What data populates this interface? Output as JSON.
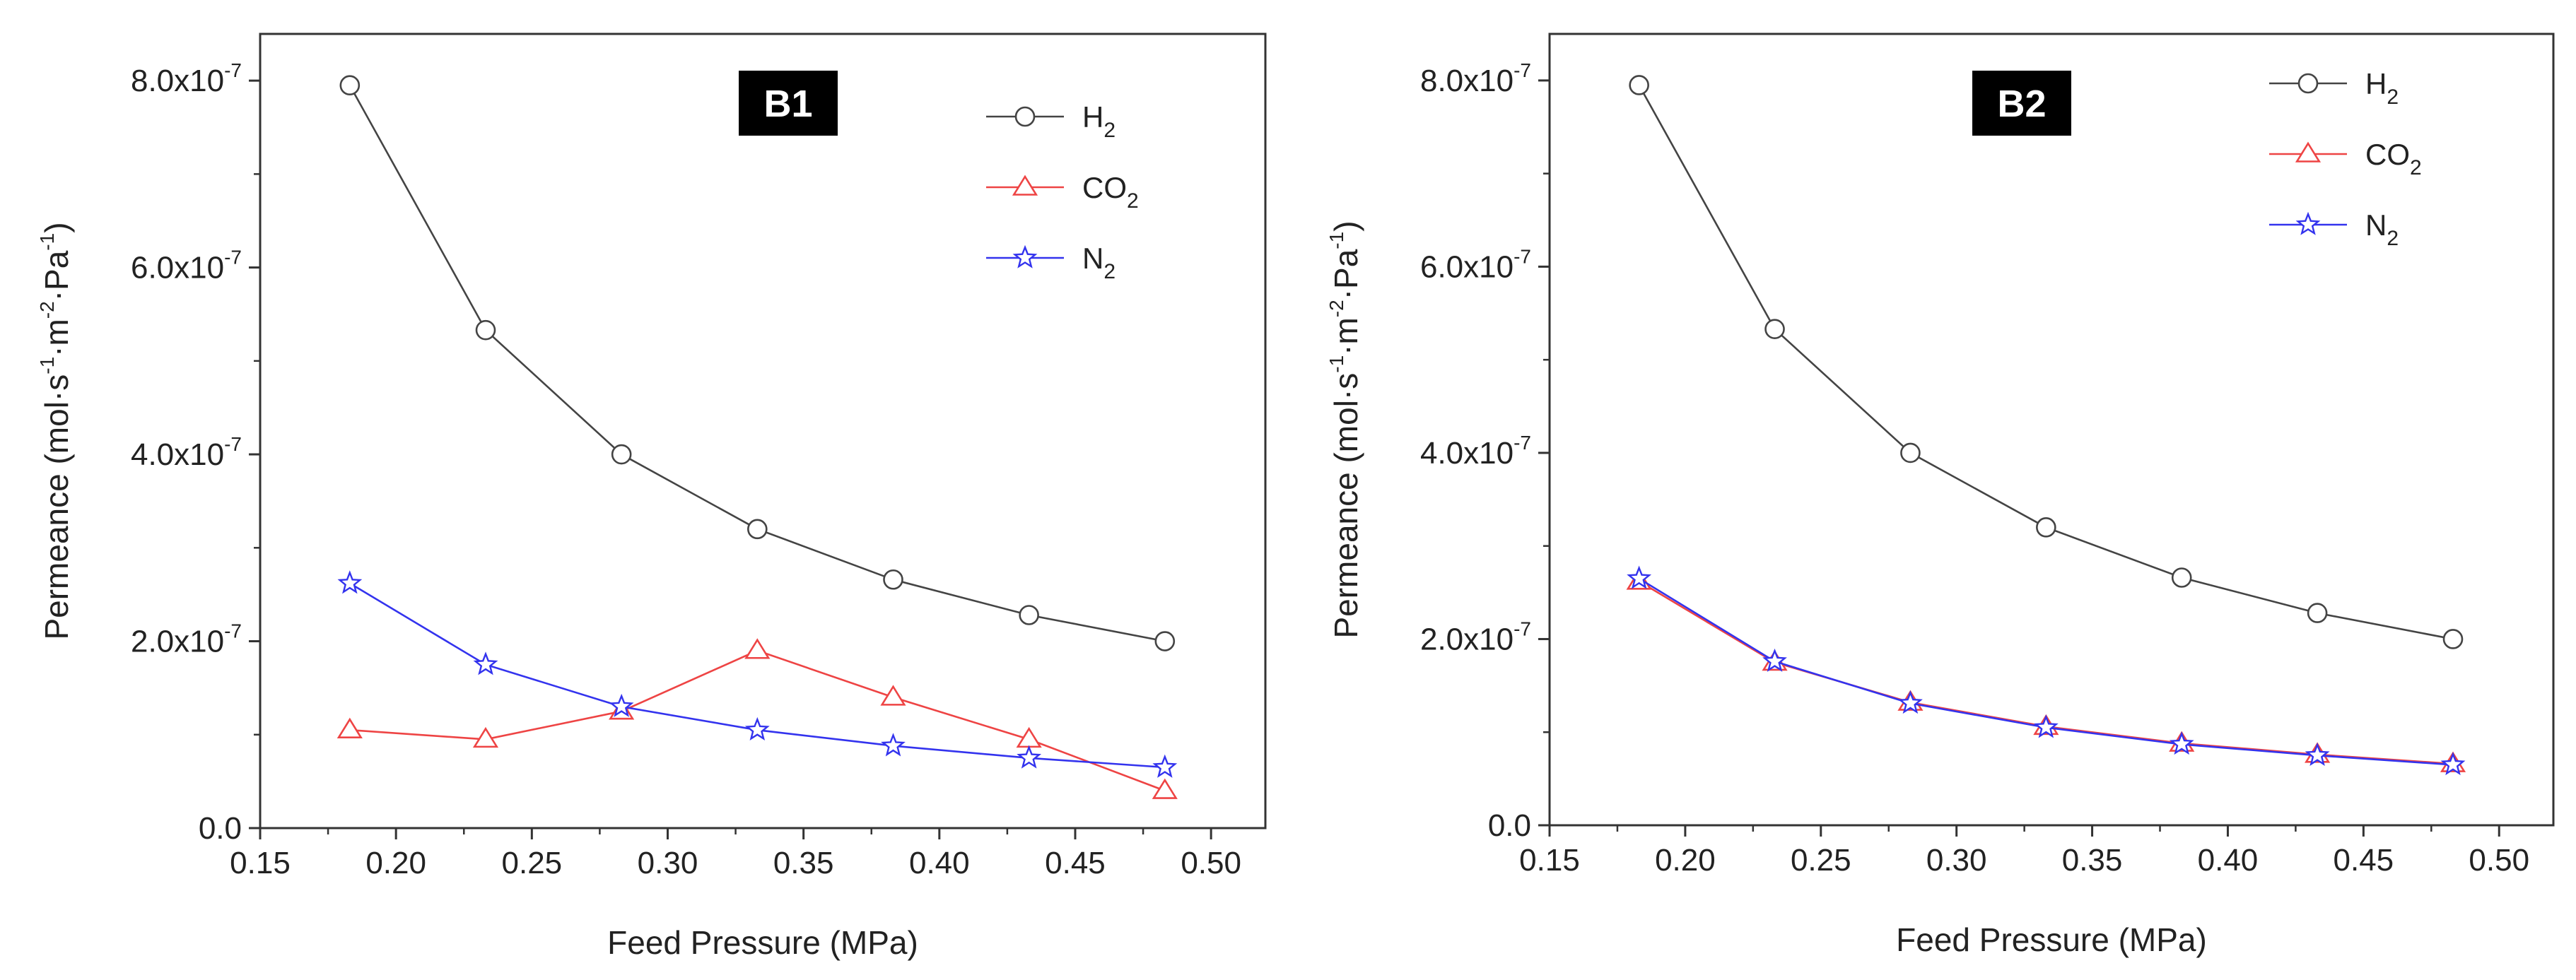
{
  "chart_data": [
    {
      "type": "line",
      "panel_label": "B1",
      "x": [
        0.183,
        0.233,
        0.283,
        0.333,
        0.383,
        0.433,
        0.483
      ],
      "series": [
        {
          "name": "H2",
          "marker": "circle",
          "color": "#444444",
          "values": [
            7.95e-07,
            5.33e-07,
            4e-07,
            3.2e-07,
            2.66e-07,
            2.28e-07,
            2e-07
          ]
        },
        {
          "name": "CO2",
          "marker": "triangle",
          "color": "#ee4444",
          "values": [
            1.05e-07,
            9.5e-08,
            1.25e-07,
            1.9e-07,
            1.4e-07,
            9.5e-08,
            4e-08
          ]
        },
        {
          "name": "N2",
          "marker": "star",
          "color": "#3333ee",
          "values": [
            2.62e-07,
            1.75e-07,
            1.3e-07,
            1.05e-07,
            8.8e-08,
            7.5e-08,
            6.5e-08
          ]
        }
      ],
      "xlabel": "Feed Pressure (MPa)",
      "ylabel": "Permeance (mol·s-1·m-2·Pa-1)",
      "xlim": [
        0.15,
        0.52
      ],
      "ylim": [
        0,
        8.5e-07
      ],
      "xticks": [
        0.15,
        0.2,
        0.25,
        0.3,
        0.35,
        0.4,
        0.45,
        0.5
      ],
      "xtick_labels": [
        "0.15",
        "0.20",
        "0.25",
        "0.30",
        "0.35",
        "0.40",
        "0.45",
        "0.50"
      ],
      "yticks": [
        0,
        2e-07,
        4e-07,
        6e-07,
        8e-07
      ],
      "ytick_labels": [
        "0.0",
        "2.0x10",
        "4.0x10",
        "6.0x10",
        "8.0x10"
      ],
      "ytick_exponents": [
        "",
        "-7",
        "-7",
        "-7",
        "-7"
      ],
      "legend": "top-right",
      "grid": false
    },
    {
      "type": "line",
      "panel_label": "B2",
      "x": [
        0.183,
        0.233,
        0.283,
        0.333,
        0.383,
        0.433,
        0.483
      ],
      "series": [
        {
          "name": "H2",
          "marker": "circle",
          "color": "#444444",
          "values": [
            7.95e-07,
            5.33e-07,
            4e-07,
            3.2e-07,
            2.66e-07,
            2.28e-07,
            2e-07
          ]
        },
        {
          "name": "CO2",
          "marker": "triangle",
          "color": "#ee4444",
          "values": [
            2.62e-07,
            1.75e-07,
            1.32e-07,
            1.06e-07,
            8.8e-08,
            7.6e-08,
            6.6e-08
          ]
        },
        {
          "name": "N2",
          "marker": "star",
          "color": "#3333ee",
          "values": [
            2.65e-07,
            1.76e-07,
            1.31e-07,
            1.05e-07,
            8.7e-08,
            7.5e-08,
            6.5e-08
          ]
        }
      ],
      "xlabel": "Feed Pressure (MPa)",
      "ylabel": "Permeance (mol·s-1·m-2·Pa-1)",
      "xlim": [
        0.15,
        0.52
      ],
      "ylim": [
        0,
        8.5e-07
      ],
      "xticks": [
        0.15,
        0.2,
        0.25,
        0.3,
        0.35,
        0.4,
        0.45,
        0.5
      ],
      "xtick_labels": [
        "0.15",
        "0.20",
        "0.25",
        "0.30",
        "0.35",
        "0.40",
        "0.45",
        "0.50"
      ],
      "yticks": [
        0,
        2e-07,
        4e-07,
        6e-07,
        8e-07
      ],
      "ytick_labels": [
        "0.0",
        "2.0x10",
        "4.0x10",
        "6.0x10",
        "8.0x10"
      ],
      "ytick_exponents": [
        "",
        "-7",
        "-7",
        "-7",
        "-7"
      ],
      "legend": "top-right",
      "grid": false
    }
  ],
  "legend_labels": {
    "H2": {
      "base": "H",
      "sub": "2"
    },
    "CO2": {
      "base": "CO",
      "sub": "2"
    },
    "N2": {
      "base": "N",
      "sub": "2"
    }
  },
  "ylabel_parts": {
    "prefix": "Permeance (mol·s",
    "e1": "-1",
    "mid1": "·m",
    "e2": "-2",
    "mid2": "·Pa",
    "e3": "-1",
    "suffix": ")"
  }
}
